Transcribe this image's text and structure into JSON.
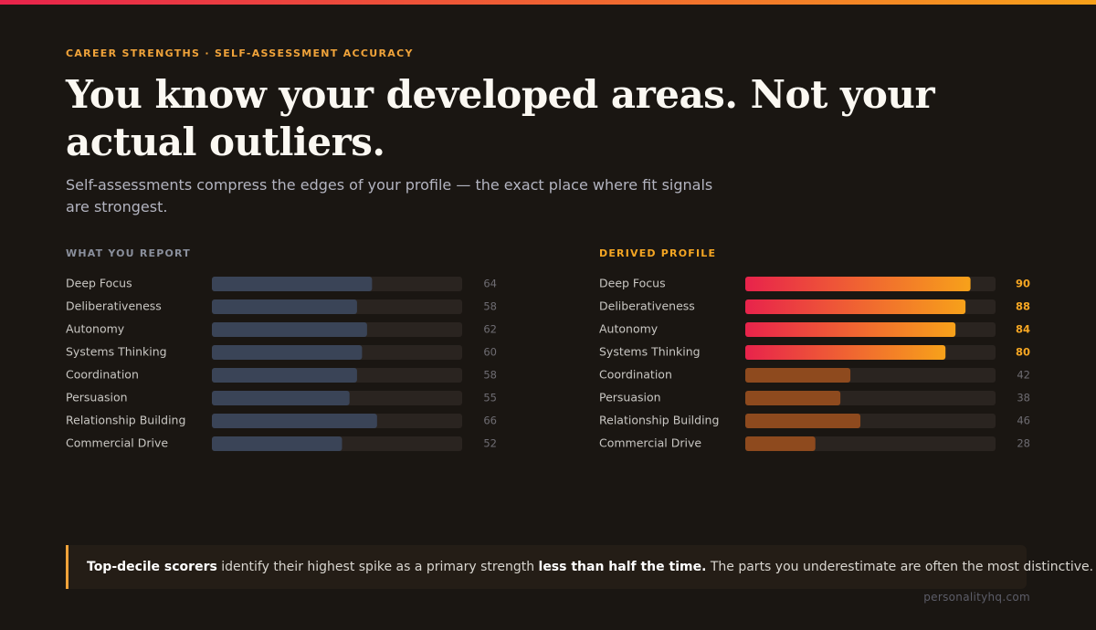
{
  "eyebrow": "CAREER STRENGTHS · SELF-ASSESSMENT ACCURACY",
  "title": "You know your developed areas. Not your actual outliers.",
  "subtitle": "Self-assessments compress the edges of your profile — the exact place where fit signals are strongest.",
  "chart_data": [
    {
      "type": "bar",
      "orientation": "horizontal",
      "title": "WHAT YOU REPORT",
      "categories": [
        "Deep Focus",
        "Deliberativeness",
        "Autonomy",
        "Systems Thinking",
        "Coordination",
        "Persuasion",
        "Relationship Building",
        "Commercial Drive"
      ],
      "values": [
        64,
        58,
        62,
        60,
        58,
        55,
        66,
        52
      ],
      "color": "#3a4457",
      "title_color": "#8a8f9c",
      "xlim": [
        0,
        100
      ]
    },
    {
      "type": "bar",
      "orientation": "horizontal",
      "title": "DERIVED PROFILE",
      "categories": [
        "Deep Focus",
        "Deliberativeness",
        "Autonomy",
        "Systems Thinking",
        "Coordination",
        "Persuasion",
        "Relationship Building",
        "Commercial Drive"
      ],
      "values": [
        90,
        88,
        84,
        80,
        42,
        38,
        46,
        28
      ],
      "color": "#8e4a1e",
      "title_color": "#f5a623",
      "highlight": [
        true,
        true,
        true,
        true,
        false,
        false,
        false,
        false
      ],
      "highlight_gradient": [
        "#e8234b",
        "#f7a11a"
      ],
      "xlim": [
        0,
        100
      ]
    }
  ],
  "callout": {
    "parts": [
      {
        "text": "Top-decile scorers",
        "bold": true
      },
      {
        "text": " identify their highest spike as a primary strength ",
        "bold": false
      },
      {
        "text": "less than half the time.",
        "bold": true
      },
      {
        "text": " The parts you underestimate are often the most distinctive.",
        "bold": false
      }
    ]
  },
  "footer": "personalityhq.com"
}
